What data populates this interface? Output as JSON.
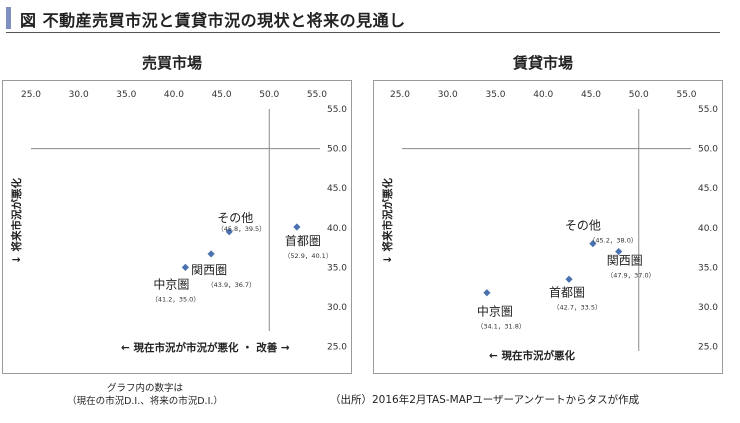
{
  "page": {
    "title": "図 不動産売買市況と賃貸市況の現状と将来の見通し",
    "note_line1": "グラフ内の数字は",
    "note_line2": "（現在の市況D.I.、将来の市況D.I.）",
    "source": "（出所）2016年2月TAS-MAPユーザーアンケートからタスが作成"
  },
  "chart_data": [
    {
      "type": "scatter",
      "title": "売買市場",
      "xlim": [
        25,
        55
      ],
      "ylim": [
        25,
        55
      ],
      "xticks": [
        "25.0",
        "30.0",
        "35.0",
        "40.0",
        "45.0",
        "50.0",
        "55.0"
      ],
      "yticks": [
        "55.0",
        "50.0",
        "45.0",
        "40.0",
        "35.0",
        "30.0",
        "25.0"
      ],
      "reference_lines": {
        "x": 50,
        "y": 50
      },
      "ylabel": "↓ 将来市況が悪化",
      "xlabel": "← 現在市況が市況が悪化 ・ 改善 →",
      "marker_color": "#4a72b0",
      "points": [
        {
          "name": "その他",
          "x": 45.8,
          "y": 39.5,
          "label": "（45.8，39.5）"
        },
        {
          "name": "首都圏",
          "x": 52.9,
          "y": 40.1,
          "label": "（52.9，40.1）"
        },
        {
          "name": "関西圏",
          "x": 43.9,
          "y": 36.7,
          "label": "（43.9，36.7）"
        },
        {
          "name": "中京圏",
          "x": 41.2,
          "y": 35.0,
          "label": "（41.2，35.0）"
        }
      ]
    },
    {
      "type": "scatter",
      "title": "賃貸市場",
      "xlim": [
        25,
        55
      ],
      "ylim": [
        25,
        55
      ],
      "xticks": [
        "25.0",
        "30.0",
        "35.0",
        "40.0",
        "45.0",
        "50.0",
        "55.0"
      ],
      "yticks": [
        "55.0",
        "50.0",
        "45.0",
        "40.0",
        "35.0",
        "30.0",
        "25.0"
      ],
      "reference_lines": {
        "x": 50,
        "y": 50
      },
      "ylabel": "↓ 将来市況が悪化",
      "xlabel": "← 現在市況が悪化",
      "marker_color": "#4a72b0",
      "points": [
        {
          "name": "その他",
          "x": 45.2,
          "y": 38.0,
          "label": "（45.2，38.0）"
        },
        {
          "name": "関西圏",
          "x": 47.9,
          "y": 37.0,
          "label": "（47.9，37.0）"
        },
        {
          "name": "首都圏",
          "x": 42.7,
          "y": 33.5,
          "label": "（42.7，33.5）"
        },
        {
          "name": "中京圏",
          "x": 34.1,
          "y": 31.8,
          "label": "（34.1，31.8）"
        }
      ]
    }
  ]
}
